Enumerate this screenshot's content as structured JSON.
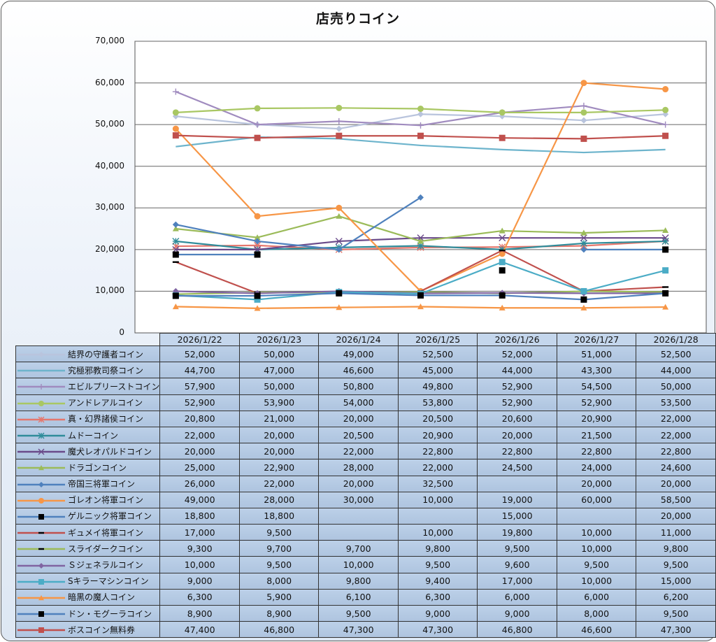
{
  "chart_data": {
    "type": "line",
    "title": "店売りコイン",
    "xlabel": "",
    "ylabel": "",
    "ylim": [
      0,
      70000
    ],
    "yticks": [
      "0",
      "10,000",
      "20,000",
      "30,000",
      "40,000",
      "50,000",
      "60,000",
      "70,000"
    ],
    "ytick_values": [
      0,
      10000,
      20000,
      30000,
      40000,
      50000,
      60000,
      70000
    ],
    "grid": true,
    "legend": "data-table-bottom",
    "categories": [
      "2026/1/22",
      "2026/1/23",
      "2026/1/24",
      "2026/1/25",
      "2026/1/26",
      "2026/1/27",
      "2026/1/28"
    ],
    "series": [
      {
        "name": "結界の守護者コイン",
        "color": "#b9c4dd",
        "marker": "diamond",
        "markerColor": "#b9c4dd",
        "values": [
          52000,
          50000,
          49000,
          52500,
          52000,
          51000,
          52500
        ]
      },
      {
        "name": "究極邪教司祭コイン",
        "color": "#6db4cc",
        "marker": "none",
        "markerColor": "#6db4cc",
        "values": [
          44700,
          47000,
          46600,
          45000,
          44000,
          43300,
          44000
        ]
      },
      {
        "name": "エビルプリーストコイン",
        "color": "#a08bbf",
        "marker": "plus",
        "markerColor": "#a08bbf",
        "values": [
          57900,
          50000,
          50800,
          49800,
          52900,
          54500,
          50000
        ]
      },
      {
        "name": "アンドレアルコイン",
        "color": "#a9c763",
        "marker": "circle",
        "markerColor": "#a9c763",
        "values": [
          52900,
          53900,
          54000,
          53800,
          52900,
          52900,
          53500
        ]
      },
      {
        "name": "真・幻界諸侯コイン",
        "color": "#e5776d",
        "marker": "star",
        "markerColor": "#e5776d",
        "values": [
          20800,
          21000,
          20000,
          20500,
          20600,
          20900,
          22000
        ]
      },
      {
        "name": "ムドーコイン",
        "color": "#2f8c9a",
        "marker": "asterisk",
        "markerColor": "#2f8c9a",
        "values": [
          22000,
          20000,
          20500,
          20900,
          20000,
          21500,
          22000
        ]
      },
      {
        "name": "魔犬レオパルドコイン",
        "color": "#6a4a8a",
        "marker": "x",
        "markerColor": "#6a4a8a",
        "values": [
          20000,
          20000,
          22000,
          22800,
          22800,
          22800,
          22800
        ]
      },
      {
        "name": "ドラゴンコイン",
        "color": "#9bbb59",
        "marker": "triangle",
        "markerColor": "#9bbb59",
        "values": [
          25000,
          22900,
          28000,
          22000,
          24500,
          24000,
          24600
        ]
      },
      {
        "name": "帝国三将軍コイン",
        "color": "#4f81bd",
        "marker": "diamond",
        "markerColor": "#4f81bd",
        "values": [
          26000,
          22000,
          20000,
          32500,
          null,
          20000,
          20000
        ]
      },
      {
        "name": "ゴレオン将軍コイン",
        "color": "#f79646",
        "marker": "circle",
        "markerColor": "#f79646",
        "values": [
          49000,
          28000,
          30000,
          10000,
          19000,
          60000,
          58500
        ]
      },
      {
        "name": "ゲルニック将軍コイン",
        "color": "#4f81bd",
        "marker": "square",
        "markerColor": "#000000",
        "values": [
          18800,
          18800,
          null,
          null,
          15000,
          null,
          20000
        ]
      },
      {
        "name": "ギュメイ将軍コイン",
        "color": "#c0504d",
        "marker": "dash",
        "markerColor": "#000000",
        "values": [
          17000,
          9500,
          null,
          10000,
          19800,
          10000,
          11000
        ]
      },
      {
        "name": "スライダークコイン",
        "color": "#9bbb59",
        "marker": "dash",
        "markerColor": "#000000",
        "values": [
          9300,
          9700,
          9700,
          9800,
          9500,
          10000,
          9800
        ]
      },
      {
        "name": "Ｓジェネラルコイン",
        "color": "#8064a2",
        "marker": "diamond",
        "markerColor": "#8064a2",
        "values": [
          10000,
          9500,
          10000,
          9500,
          9600,
          9500,
          9500
        ]
      },
      {
        "name": "Sキラーマシンコイン",
        "color": "#4bacc6",
        "marker": "square",
        "markerColor": "#4bacc6",
        "values": [
          9000,
          8000,
          9800,
          9400,
          17000,
          10000,
          15000
        ]
      },
      {
        "name": "暗黒の魔人コイン",
        "color": "#f79646",
        "marker": "triangle",
        "markerColor": "#f79646",
        "values": [
          6300,
          5900,
          6100,
          6300,
          6000,
          6000,
          6200
        ]
      },
      {
        "name": "ドン・モグーラコイン",
        "color": "#4f81bd",
        "marker": "square",
        "markerColor": "#000000",
        "values": [
          8900,
          8900,
          9500,
          9000,
          9000,
          8000,
          9500
        ]
      },
      {
        "name": "ボスコイン無料券",
        "color": "#c0504d",
        "marker": "square",
        "markerColor": "#c0504d",
        "values": [
          47400,
          46800,
          47300,
          47300,
          46800,
          46600,
          47300
        ]
      }
    ]
  }
}
